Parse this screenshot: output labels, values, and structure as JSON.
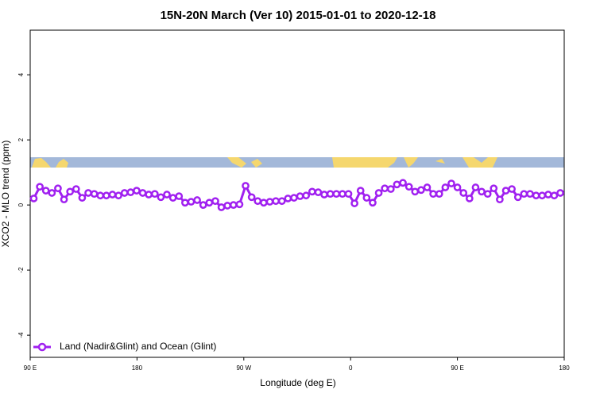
{
  "chart_data": {
    "type": "line",
    "title": "15N-20N March (Ver 10)   2015-01-01 to 2020-12-18",
    "x_label": "Longitude (deg E)",
    "y_label": "XCO2 - MLO trend (ppm)",
    "xlim": [
      90,
      540
    ],
    "xticks": [
      {
        "value": 90,
        "label": "90 E"
      },
      {
        "value": 180,
        "label": "180"
      },
      {
        "value": 270,
        "label": "90 W"
      },
      {
        "value": 360,
        "label": "0"
      },
      {
        "value": 450,
        "label": "90 E"
      },
      {
        "value": 540,
        "label": "180"
      }
    ],
    "ylim": [
      -4.68,
      5.37
    ],
    "yticks": [
      -4,
      -2,
      0,
      2,
      4
    ],
    "legend": "bottom-left",
    "x": [
      93,
      98.1,
      103.2,
      108.3,
      113.4,
      118.5,
      123.6,
      128.7,
      133.8,
      138.9,
      144,
      149.1,
      154.2,
      159.3,
      164.4,
      169.5,
      174.6,
      179.7,
      184.8,
      189.9,
      195,
      200.1,
      205.2,
      210.3,
      215.4,
      220.5,
      225.6,
      230.7,
      235.8,
      240.9,
      246,
      251.1,
      256.2,
      261.3,
      266.4,
      271.5,
      276.6,
      281.7,
      286.8,
      291.9,
      297,
      302.1,
      307.2,
      312.3,
      317.4,
      322.5,
      327.6,
      332.7,
      337.8,
      342.9,
      348,
      353.1,
      358.2,
      363.3,
      368.4,
      373.5,
      378.6,
      383.7,
      388.8,
      393.9,
      399,
      404.1,
      409.2,
      414.3,
      419.4,
      424.5,
      429.6,
      434.7,
      439.8,
      444.9,
      450,
      455.1,
      460.2,
      465.3,
      470.4,
      475.5,
      480.6,
      485.7,
      490.8,
      495.9,
      501,
      506.1,
      511.2,
      516.3,
      521.4,
      526.5,
      531.6,
      536.7
    ],
    "series": [
      {
        "name": "Land (Nadir&Glint) and Ocean (Glint)",
        "color": "#a020f0",
        "values": [
          0.2,
          0.56,
          0.44,
          0.37,
          0.51,
          0.17,
          0.41,
          0.49,
          0.22,
          0.37,
          0.34,
          0.29,
          0.29,
          0.32,
          0.29,
          0.37,
          0.39,
          0.44,
          0.37,
          0.32,
          0.34,
          0.24,
          0.32,
          0.22,
          0.27,
          0.07,
          0.1,
          0.15,
          0,
          0.07,
          0.12,
          -0.07,
          -0.02,
          0,
          0.02,
          0.59,
          0.24,
          0.12,
          0.07,
          0.1,
          0.12,
          0.12,
          0.2,
          0.22,
          0.27,
          0.29,
          0.41,
          0.39,
          0.32,
          0.34,
          0.34,
          0.34,
          0.34,
          0.05,
          0.44,
          0.22,
          0.07,
          0.37,
          0.51,
          0.49,
          0.63,
          0.68,
          0.56,
          0.41,
          0.46,
          0.54,
          0.34,
          0.34,
          0.54,
          0.66,
          0.54,
          0.37,
          0.2,
          0.54,
          0.41,
          0.34,
          0.51,
          0.17,
          0.44,
          0.49,
          0.24,
          0.34,
          0.34,
          0.29,
          0.29,
          0.32,
          0.29,
          0.37
        ]
      }
    ]
  }
}
